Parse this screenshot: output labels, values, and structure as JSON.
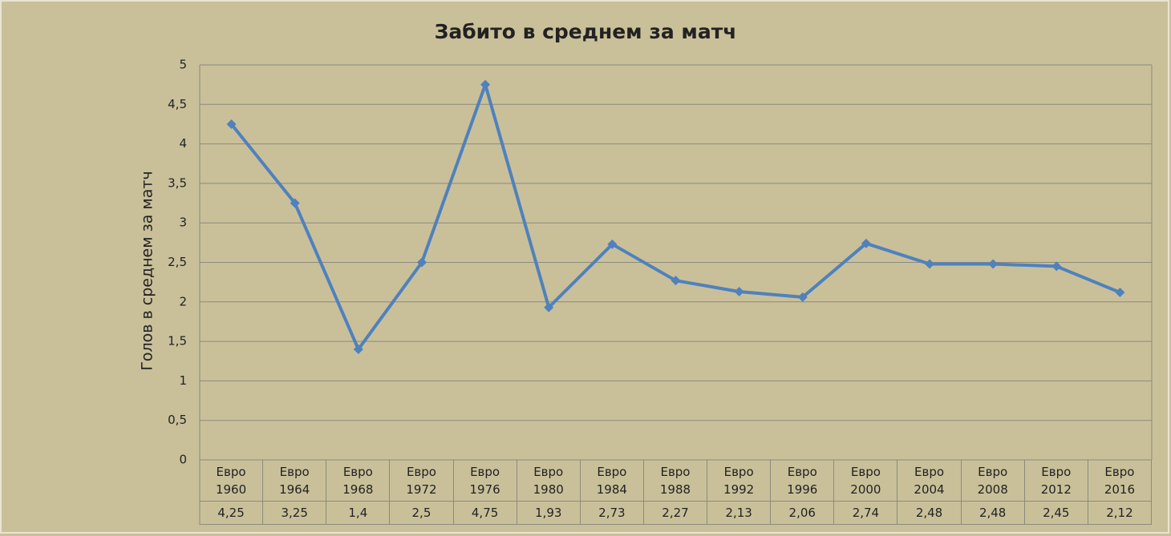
{
  "chart_data": {
    "type": "line",
    "title": "Забито в среднем за матч",
    "y_label": "Голов в среднем за матч",
    "categories": [
      "Евро 1960",
      "Евро 1964",
      "Евро 1968",
      "Евро 1972",
      "Евро 1976",
      "Евро 1980",
      "Евро 1984",
      "Евро 1988",
      "Евро 1992",
      "Евро 1996",
      "Евро 2000",
      "Евро 2004",
      "Евро 2008",
      "Евро 2012",
      "Евро 2016"
    ],
    "values": [
      4.25,
      3.25,
      1.4,
      2.5,
      4.75,
      1.93,
      2.73,
      2.27,
      2.13,
      2.06,
      2.74,
      2.48,
      2.48,
      2.45,
      2.12
    ],
    "value_labels": [
      "4,25",
      "3,25",
      "1,4",
      "2,5",
      "4,75",
      "1,93",
      "2,73",
      "2,27",
      "2,13",
      "2,06",
      "2,74",
      "2,48",
      "2,48",
      "2,45",
      "2,12"
    ],
    "color": "#4f81bd",
    "ylim": [
      0,
      5
    ],
    "yticks": [
      0,
      {
        "value": 0.5,
        "label": "0,5"
      },
      1,
      {
        "value": 1.5,
        "label": "1,5"
      },
      2,
      {
        "value": 2.5,
        "label": "2,5"
      },
      3,
      {
        "value": 3.5,
        "label": "3,5"
      },
      4,
      {
        "value": 4.5,
        "label": "4,5"
      },
      5
    ],
    "grid": true
  }
}
